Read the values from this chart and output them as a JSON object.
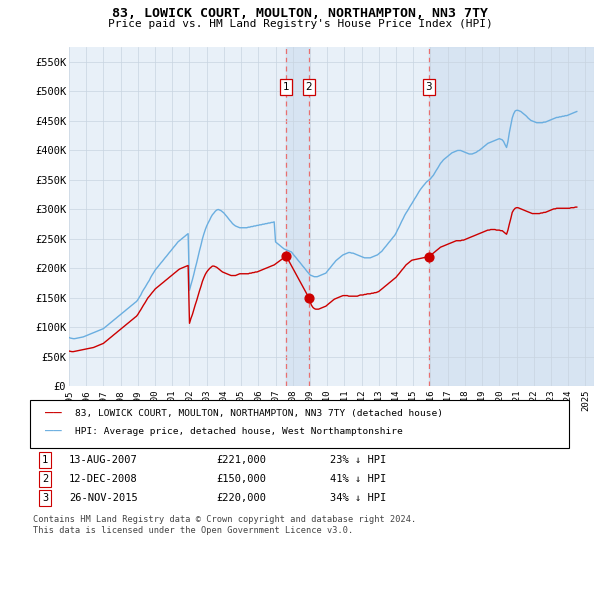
{
  "title": "83, LOWICK COURT, MOULTON, NORTHAMPTON, NN3 7TY",
  "subtitle": "Price paid vs. HM Land Registry's House Price Index (HPI)",
  "ylabel_ticks": [
    "£0",
    "£50K",
    "£100K",
    "£150K",
    "£200K",
    "£250K",
    "£300K",
    "£350K",
    "£400K",
    "£450K",
    "£500K",
    "£550K"
  ],
  "ytick_vals": [
    0,
    50000,
    100000,
    150000,
    200000,
    250000,
    300000,
    350000,
    400000,
    450000,
    500000,
    550000
  ],
  "ylim": [
    0,
    575000
  ],
  "xlim_start": 1995.0,
  "xlim_end": 2025.5,
  "chart_bg_color": "#e8f0f8",
  "background_color": "#ffffff",
  "grid_color": "#c8d4e0",
  "hpi_color": "#6aaee0",
  "price_color": "#cc0000",
  "vline_color": "#e87070",
  "shade_color": "#d0e0f0",
  "sale_dates": [
    2007.617,
    2008.942,
    2015.9
  ],
  "sale_prices": [
    221000,
    150000,
    220000
  ],
  "sale_labels": [
    "1",
    "2",
    "3"
  ],
  "legend_line1": "83, LOWICK COURT, MOULTON, NORTHAMPTON, NN3 7TY (detached house)",
  "legend_line2": "HPI: Average price, detached house, West Northamptonshire",
  "table_rows": [
    [
      "1",
      "13-AUG-2007",
      "£221,000",
      "23% ↓ HPI"
    ],
    [
      "2",
      "12-DEC-2008",
      "£150,000",
      "41% ↓ HPI"
    ],
    [
      "3",
      "26-NOV-2015",
      "£220,000",
      "34% ↓ HPI"
    ]
  ],
  "footnote1": "Contains HM Land Registry data © Crown copyright and database right 2024.",
  "footnote2": "This data is licensed under the Open Government Licence v3.0.",
  "hpi_data_x": [
    1995.0,
    1995.08,
    1995.17,
    1995.25,
    1995.33,
    1995.42,
    1995.5,
    1995.58,
    1995.67,
    1995.75,
    1995.83,
    1995.92,
    1996.0,
    1996.08,
    1996.17,
    1996.25,
    1996.33,
    1996.42,
    1996.5,
    1996.58,
    1996.67,
    1996.75,
    1996.83,
    1996.92,
    1997.0,
    1997.08,
    1997.17,
    1997.25,
    1997.33,
    1997.42,
    1997.5,
    1997.58,
    1997.67,
    1997.75,
    1997.83,
    1997.92,
    1998.0,
    1998.08,
    1998.17,
    1998.25,
    1998.33,
    1998.42,
    1998.5,
    1998.58,
    1998.67,
    1998.75,
    1998.83,
    1998.92,
    1999.0,
    1999.08,
    1999.17,
    1999.25,
    1999.33,
    1999.42,
    1999.5,
    1999.58,
    1999.67,
    1999.75,
    1999.83,
    1999.92,
    2000.0,
    2000.08,
    2000.17,
    2000.25,
    2000.33,
    2000.42,
    2000.5,
    2000.58,
    2000.67,
    2000.75,
    2000.83,
    2000.92,
    2001.0,
    2001.08,
    2001.17,
    2001.25,
    2001.33,
    2001.42,
    2001.5,
    2001.58,
    2001.67,
    2001.75,
    2001.83,
    2001.92,
    2002.0,
    2002.08,
    2002.17,
    2002.25,
    2002.33,
    2002.42,
    2002.5,
    2002.58,
    2002.67,
    2002.75,
    2002.83,
    2002.92,
    2003.0,
    2003.08,
    2003.17,
    2003.25,
    2003.33,
    2003.42,
    2003.5,
    2003.58,
    2003.67,
    2003.75,
    2003.83,
    2003.92,
    2004.0,
    2004.08,
    2004.17,
    2004.25,
    2004.33,
    2004.42,
    2004.5,
    2004.58,
    2004.67,
    2004.75,
    2004.83,
    2004.92,
    2005.0,
    2005.08,
    2005.17,
    2005.25,
    2005.33,
    2005.42,
    2005.5,
    2005.58,
    2005.67,
    2005.75,
    2005.83,
    2005.92,
    2006.0,
    2006.08,
    2006.17,
    2006.25,
    2006.33,
    2006.42,
    2006.5,
    2006.58,
    2006.67,
    2006.75,
    2006.83,
    2006.92,
    2007.0,
    2007.08,
    2007.17,
    2007.25,
    2007.33,
    2007.42,
    2007.5,
    2007.58,
    2007.67,
    2007.75,
    2007.83,
    2007.92,
    2008.0,
    2008.08,
    2008.17,
    2008.25,
    2008.33,
    2008.42,
    2008.5,
    2008.58,
    2008.67,
    2008.75,
    2008.83,
    2008.92,
    2009.0,
    2009.08,
    2009.17,
    2009.25,
    2009.33,
    2009.42,
    2009.5,
    2009.58,
    2009.67,
    2009.75,
    2009.83,
    2009.92,
    2010.0,
    2010.08,
    2010.17,
    2010.25,
    2010.33,
    2010.42,
    2010.5,
    2010.58,
    2010.67,
    2010.75,
    2010.83,
    2010.92,
    2011.0,
    2011.08,
    2011.17,
    2011.25,
    2011.33,
    2011.42,
    2011.5,
    2011.58,
    2011.67,
    2011.75,
    2011.83,
    2011.92,
    2012.0,
    2012.08,
    2012.17,
    2012.25,
    2012.33,
    2012.42,
    2012.5,
    2012.58,
    2012.67,
    2012.75,
    2012.83,
    2012.92,
    2013.0,
    2013.08,
    2013.17,
    2013.25,
    2013.33,
    2013.42,
    2013.5,
    2013.58,
    2013.67,
    2013.75,
    2013.83,
    2013.92,
    2014.0,
    2014.08,
    2014.17,
    2014.25,
    2014.33,
    2014.42,
    2014.5,
    2014.58,
    2014.67,
    2014.75,
    2014.83,
    2014.92,
    2015.0,
    2015.08,
    2015.17,
    2015.25,
    2015.33,
    2015.42,
    2015.5,
    2015.58,
    2015.67,
    2015.75,
    2015.83,
    2015.92,
    2016.0,
    2016.08,
    2016.17,
    2016.25,
    2016.33,
    2016.42,
    2016.5,
    2016.58,
    2016.67,
    2016.75,
    2016.83,
    2016.92,
    2017.0,
    2017.08,
    2017.17,
    2017.25,
    2017.33,
    2017.42,
    2017.5,
    2017.58,
    2017.67,
    2017.75,
    2017.83,
    2017.92,
    2018.0,
    2018.08,
    2018.17,
    2018.25,
    2018.33,
    2018.42,
    2018.5,
    2018.58,
    2018.67,
    2018.75,
    2018.83,
    2018.92,
    2019.0,
    2019.08,
    2019.17,
    2019.25,
    2019.33,
    2019.42,
    2019.5,
    2019.58,
    2019.67,
    2019.75,
    2019.83,
    2019.92,
    2020.0,
    2020.08,
    2020.17,
    2020.25,
    2020.33,
    2020.42,
    2020.5,
    2020.58,
    2020.67,
    2020.75,
    2020.83,
    2020.92,
    2021.0,
    2021.08,
    2021.17,
    2021.25,
    2021.33,
    2021.42,
    2021.5,
    2021.58,
    2021.67,
    2021.75,
    2021.83,
    2021.92,
    2022.0,
    2022.08,
    2022.17,
    2022.25,
    2022.33,
    2022.42,
    2022.5,
    2022.58,
    2022.67,
    2022.75,
    2022.83,
    2022.92,
    2023.0,
    2023.08,
    2023.17,
    2023.25,
    2023.33,
    2023.42,
    2023.5,
    2023.58,
    2023.67,
    2023.75,
    2023.83,
    2023.92,
    2024.0,
    2024.08,
    2024.17,
    2024.25,
    2024.33,
    2024.42,
    2024.5
  ],
  "hpi_data_y": [
    83000,
    82000,
    81500,
    81000,
    81000,
    81500,
    82000,
    82500,
    83000,
    83500,
    84000,
    85000,
    86000,
    87000,
    88000,
    89000,
    90000,
    91000,
    92000,
    93000,
    94000,
    95000,
    96000,
    97000,
    98000,
    100000,
    102000,
    104000,
    106000,
    108000,
    110000,
    112000,
    114000,
    116000,
    118000,
    120000,
    122000,
    124000,
    126000,
    128000,
    130000,
    132000,
    134000,
    136000,
    138000,
    140000,
    142000,
    144000,
    147000,
    151000,
    155000,
    160000,
    164000,
    168000,
    172000,
    176000,
    180000,
    185000,
    189000,
    193000,
    197000,
    200000,
    203000,
    206000,
    209000,
    212000,
    215000,
    218000,
    221000,
    224000,
    227000,
    230000,
    233000,
    236000,
    239000,
    242000,
    245000,
    247000,
    249000,
    251000,
    253000,
    255000,
    257000,
    259000,
    163000,
    172000,
    181000,
    190000,
    200000,
    210000,
    220000,
    230000,
    240000,
    250000,
    258000,
    266000,
    272000,
    277000,
    282000,
    287000,
    291000,
    294000,
    297000,
    299000,
    300000,
    299000,
    298000,
    296000,
    294000,
    291000,
    288000,
    285000,
    282000,
    279000,
    276000,
    274000,
    272000,
    271000,
    270000,
    269000,
    269000,
    269000,
    269000,
    269000,
    269000,
    270000,
    270000,
    271000,
    271000,
    272000,
    272000,
    273000,
    273000,
    274000,
    274000,
    275000,
    275000,
    276000,
    276000,
    277000,
    277000,
    278000,
    278000,
    279000,
    245000,
    243000,
    241000,
    239000,
    237000,
    235000,
    233000,
    232000,
    231000,
    230000,
    229000,
    228000,
    225000,
    222000,
    219000,
    216000,
    213000,
    210000,
    207000,
    204000,
    201000,
    198000,
    195000,
    192000,
    189000,
    188000,
    187000,
    186000,
    186000,
    186000,
    187000,
    188000,
    189000,
    190000,
    191000,
    192000,
    195000,
    198000,
    201000,
    204000,
    207000,
    210000,
    213000,
    215000,
    217000,
    219000,
    221000,
    223000,
    224000,
    225000,
    226000,
    227000,
    227000,
    226000,
    226000,
    225000,
    224000,
    223000,
    222000,
    221000,
    220000,
    219000,
    218000,
    218000,
    218000,
    218000,
    218000,
    219000,
    220000,
    221000,
    222000,
    223000,
    225000,
    227000,
    229000,
    232000,
    235000,
    238000,
    241000,
    244000,
    247000,
    250000,
    253000,
    256000,
    260000,
    265000,
    270000,
    275000,
    280000,
    285000,
    290000,
    294000,
    298000,
    302000,
    306000,
    310000,
    314000,
    318000,
    322000,
    326000,
    330000,
    334000,
    337000,
    340000,
    343000,
    346000,
    348000,
    350000,
    352000,
    355000,
    358000,
    362000,
    366000,
    370000,
    374000,
    378000,
    381000,
    384000,
    386000,
    388000,
    390000,
    392000,
    394000,
    396000,
    397000,
    398000,
    399000,
    400000,
    400000,
    400000,
    399000,
    398000,
    397000,
    396000,
    395000,
    394000,
    394000,
    394000,
    395000,
    396000,
    397000,
    399000,
    400000,
    402000,
    404000,
    406000,
    408000,
    410000,
    412000,
    413000,
    414000,
    415000,
    416000,
    417000,
    418000,
    419000,
    420000,
    419000,
    418000,
    415000,
    410000,
    405000,
    415000,
    430000,
    443000,
    455000,
    462000,
    467000,
    468000,
    468000,
    467000,
    466000,
    464000,
    462000,
    460000,
    458000,
    455000,
    453000,
    451000,
    450000,
    449000,
    448000,
    447000,
    447000,
    447000,
    447000,
    447000,
    448000,
    448000,
    449000,
    450000,
    451000,
    452000,
    453000,
    454000,
    455000,
    456000,
    456000,
    457000,
    457000,
    458000,
    458000,
    459000,
    459000,
    460000,
    461000,
    462000,
    463000,
    464000,
    465000,
    466000
  ],
  "price_data_x": [
    1995.0,
    1995.08,
    1995.17,
    1995.25,
    1995.33,
    1995.42,
    1995.5,
    1995.58,
    1995.67,
    1995.75,
    1995.83,
    1995.92,
    1996.0,
    1996.08,
    1996.17,
    1996.25,
    1996.33,
    1996.42,
    1996.5,
    1996.58,
    1996.67,
    1996.75,
    1996.83,
    1996.92,
    1997.0,
    1997.08,
    1997.17,
    1997.25,
    1997.33,
    1997.42,
    1997.5,
    1997.58,
    1997.67,
    1997.75,
    1997.83,
    1997.92,
    1998.0,
    1998.08,
    1998.17,
    1998.25,
    1998.33,
    1998.42,
    1998.5,
    1998.58,
    1998.67,
    1998.75,
    1998.83,
    1998.92,
    1999.0,
    1999.08,
    1999.17,
    1999.25,
    1999.33,
    1999.42,
    1999.5,
    1999.58,
    1999.67,
    1999.75,
    1999.83,
    1999.92,
    2000.0,
    2000.08,
    2000.17,
    2000.25,
    2000.33,
    2000.42,
    2000.5,
    2000.58,
    2000.67,
    2000.75,
    2000.83,
    2000.92,
    2001.0,
    2001.08,
    2001.17,
    2001.25,
    2001.33,
    2001.42,
    2001.5,
    2001.58,
    2001.67,
    2001.75,
    2001.83,
    2001.92,
    2002.0,
    2002.08,
    2002.17,
    2002.25,
    2002.33,
    2002.42,
    2002.5,
    2002.58,
    2002.67,
    2002.75,
    2002.83,
    2002.92,
    2003.0,
    2003.08,
    2003.17,
    2003.25,
    2003.33,
    2003.42,
    2003.5,
    2003.58,
    2003.67,
    2003.75,
    2003.83,
    2003.92,
    2004.0,
    2004.08,
    2004.17,
    2004.25,
    2004.33,
    2004.42,
    2004.5,
    2004.58,
    2004.67,
    2004.75,
    2004.83,
    2004.92,
    2005.0,
    2005.08,
    2005.17,
    2005.25,
    2005.33,
    2005.42,
    2005.5,
    2005.58,
    2005.67,
    2005.75,
    2005.83,
    2005.92,
    2006.0,
    2006.08,
    2006.17,
    2006.25,
    2006.33,
    2006.42,
    2006.5,
    2006.58,
    2006.67,
    2006.75,
    2006.83,
    2006.92,
    2007.617,
    2008.942,
    2009.08,
    2009.17,
    2009.25,
    2009.33,
    2009.42,
    2009.5,
    2009.58,
    2009.67,
    2009.75,
    2009.83,
    2009.92,
    2010.0,
    2010.08,
    2010.17,
    2010.25,
    2010.33,
    2010.42,
    2010.5,
    2010.58,
    2010.67,
    2010.75,
    2010.83,
    2010.92,
    2011.0,
    2011.08,
    2011.17,
    2011.25,
    2011.33,
    2011.42,
    2011.5,
    2011.58,
    2011.67,
    2011.75,
    2011.83,
    2011.92,
    2012.0,
    2012.08,
    2012.17,
    2012.25,
    2012.33,
    2012.42,
    2012.5,
    2012.58,
    2012.67,
    2012.75,
    2012.83,
    2012.92,
    2013.0,
    2013.08,
    2013.17,
    2013.25,
    2013.33,
    2013.42,
    2013.5,
    2013.58,
    2013.67,
    2013.75,
    2013.83,
    2013.92,
    2014.0,
    2014.08,
    2014.17,
    2014.25,
    2014.33,
    2014.42,
    2014.5,
    2014.58,
    2014.67,
    2014.75,
    2014.83,
    2014.92,
    2015.9,
    2016.0,
    2016.08,
    2016.17,
    2016.25,
    2016.33,
    2016.42,
    2016.5,
    2016.58,
    2016.67,
    2016.75,
    2016.83,
    2016.92,
    2017.0,
    2017.08,
    2017.17,
    2017.25,
    2017.33,
    2017.42,
    2017.5,
    2017.58,
    2017.67,
    2017.75,
    2017.83,
    2017.92,
    2018.0,
    2018.08,
    2018.17,
    2018.25,
    2018.33,
    2018.42,
    2018.5,
    2018.58,
    2018.67,
    2018.75,
    2018.83,
    2018.92,
    2019.0,
    2019.08,
    2019.17,
    2019.25,
    2019.33,
    2019.42,
    2019.5,
    2019.58,
    2019.67,
    2019.75,
    2019.83,
    2019.92,
    2020.0,
    2020.08,
    2020.17,
    2020.25,
    2020.33,
    2020.42,
    2020.5,
    2020.58,
    2020.67,
    2020.75,
    2020.83,
    2020.92,
    2021.0,
    2021.08,
    2021.17,
    2021.25,
    2021.33,
    2021.42,
    2021.5,
    2021.58,
    2021.67,
    2021.75,
    2021.83,
    2021.92,
    2022.0,
    2022.08,
    2022.17,
    2022.25,
    2022.33,
    2022.42,
    2022.5,
    2022.58,
    2022.67,
    2022.75,
    2022.83,
    2022.92,
    2023.0,
    2023.08,
    2023.17,
    2023.25,
    2023.33,
    2023.42,
    2023.5,
    2023.58,
    2023.67,
    2023.75,
    2023.83,
    2023.92,
    2024.0,
    2024.08,
    2024.17,
    2024.25,
    2024.33,
    2024.42,
    2024.5
  ],
  "price_data_y": [
    60000,
    59500,
    59000,
    59000,
    59500,
    60000,
    60500,
    61000,
    61500,
    62000,
    62500,
    63000,
    63500,
    64000,
    64500,
    65000,
    65500,
    66000,
    67000,
    68000,
    69000,
    70000,
    71000,
    72000,
    73000,
    75000,
    77000,
    79000,
    81000,
    83000,
    85000,
    87000,
    89000,
    91000,
    93000,
    95000,
    97000,
    99000,
    101000,
    103000,
    105000,
    107000,
    109000,
    111000,
    113000,
    115000,
    117000,
    119000,
    122000,
    126000,
    130000,
    134000,
    138000,
    142000,
    146000,
    150000,
    153000,
    156000,
    159000,
    162000,
    165000,
    167000,
    169000,
    171000,
    173000,
    175000,
    177000,
    179000,
    181000,
    183000,
    185000,
    187000,
    189000,
    191000,
    193000,
    195000,
    197000,
    199000,
    200000,
    201000,
    202000,
    203000,
    204000,
    205000,
    107000,
    115000,
    122000,
    130000,
    138000,
    146000,
    154000,
    162000,
    170000,
    178000,
    184000,
    190000,
    194000,
    197000,
    200000,
    202000,
    204000,
    204000,
    203000,
    202000,
    200000,
    198000,
    196000,
    194000,
    193000,
    192000,
    191000,
    190000,
    189000,
    188000,
    188000,
    188000,
    188000,
    189000,
    190000,
    191000,
    191000,
    191000,
    191000,
    191000,
    191000,
    191000,
    192000,
    192000,
    193000,
    193000,
    194000,
    194000,
    195000,
    196000,
    197000,
    198000,
    199000,
    200000,
    201000,
    202000,
    203000,
    204000,
    205000,
    206000,
    221000,
    150000,
    138000,
    134000,
    132000,
    131000,
    131000,
    131000,
    132000,
    133000,
    134000,
    135000,
    136000,
    138000,
    140000,
    142000,
    144000,
    146000,
    148000,
    149000,
    150000,
    151000,
    152000,
    153000,
    154000,
    154000,
    154000,
    154000,
    153000,
    153000,
    153000,
    153000,
    153000,
    153000,
    153000,
    154000,
    155000,
    155000,
    155000,
    156000,
    156000,
    157000,
    157000,
    157000,
    158000,
    158000,
    159000,
    159000,
    160000,
    161000,
    163000,
    165000,
    167000,
    169000,
    171000,
    173000,
    175000,
    177000,
    179000,
    181000,
    183000,
    185000,
    188000,
    191000,
    194000,
    197000,
    200000,
    203000,
    206000,
    208000,
    210000,
    212000,
    214000,
    220000,
    222000,
    224000,
    226000,
    228000,
    230000,
    232000,
    234000,
    236000,
    237000,
    238000,
    239000,
    240000,
    241000,
    242000,
    243000,
    244000,
    245000,
    246000,
    247000,
    247000,
    247000,
    247000,
    248000,
    248000,
    249000,
    250000,
    251000,
    252000,
    253000,
    254000,
    255000,
    256000,
    257000,
    258000,
    259000,
    260000,
    261000,
    262000,
    263000,
    264000,
    265000,
    265000,
    266000,
    266000,
    266000,
    266000,
    265000,
    265000,
    265000,
    264000,
    264000,
    262000,
    260000,
    258000,
    265000,
    275000,
    285000,
    295000,
    299000,
    302000,
    303000,
    303000,
    302000,
    301000,
    300000,
    299000,
    298000,
    297000,
    296000,
    295000,
    294000,
    293000,
    293000,
    293000,
    293000,
    293000,
    293000,
    294000,
    294000,
    295000,
    295000,
    296000,
    297000,
    298000,
    299000,
    300000,
    301000,
    301000,
    302000,
    302000,
    302000,
    302000,
    302000,
    302000,
    302000,
    302000,
    302000,
    302000,
    303000,
    303000,
    303000,
    304000,
    304000
  ]
}
